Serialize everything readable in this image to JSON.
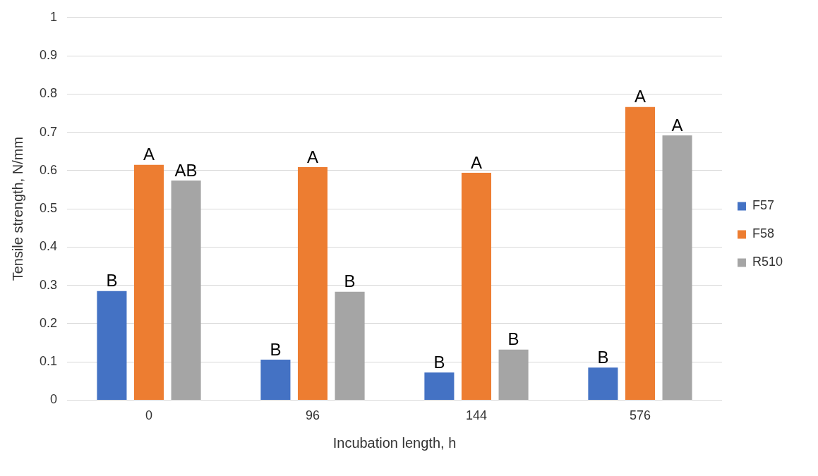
{
  "chart_data": {
    "type": "bar",
    "xlabel": "Incubation length, h",
    "ylabel": "Tensile strength, N/mm",
    "categories": [
      "0",
      "96",
      "144",
      "576"
    ],
    "series": [
      {
        "name": "F57",
        "color": "#4472c4",
        "values": [
          0.285,
          0.106,
          0.072,
          0.085
        ],
        "value_labels": [
          "B",
          "B",
          "B",
          "B"
        ]
      },
      {
        "name": "F58",
        "color": "#ed7d31",
        "values": [
          0.615,
          0.609,
          0.594,
          0.766
        ],
        "value_labels": [
          "A",
          "A",
          "A",
          "A"
        ]
      },
      {
        "name": "R510",
        "color": "#a5a5a5",
        "values": [
          0.574,
          0.283,
          0.132,
          0.692
        ],
        "value_labels": [
          "AB",
          "B",
          "B",
          "A"
        ]
      }
    ],
    "ylim": [
      0,
      1
    ],
    "yticks": [
      0,
      0.1,
      0.2,
      0.3,
      0.4,
      0.5,
      0.6,
      0.7,
      0.8,
      0.9,
      1
    ],
    "grid": "y",
    "legend": "right"
  }
}
